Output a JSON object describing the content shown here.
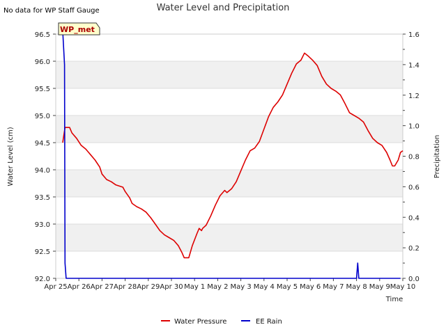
{
  "note": "No data for WP Staff Gauge",
  "chart_data": {
    "type": "line",
    "title": "Water Level and Precipitation",
    "xlabel": "Time",
    "ylabel_left": "Water Level (cm)",
    "ylabel_right": "Precipitation",
    "badge": "WP_met",
    "x_ticks": [
      "Apr 25",
      "Apr 26",
      "Apr 27",
      "Apr 28",
      "Apr 29",
      "Apr 30",
      "May 1",
      "May 2",
      "May 3",
      "May 4",
      "May 5",
      "May 6",
      "May 7",
      "May 8",
      "May 9",
      "May 10"
    ],
    "x_range_days": [
      0,
      15
    ],
    "y_left": {
      "ylim": [
        92.0,
        96.5
      ],
      "ticks": [
        "92.0",
        "92.5",
        "93.0",
        "93.5",
        "94.0",
        "94.5",
        "95.0",
        "95.5",
        "96.0",
        "96.5"
      ]
    },
    "y_right": {
      "ylim": [
        0.0,
        1.6
      ],
      "ticks": [
        "0.0",
        "0.2",
        "0.4",
        "0.6",
        "0.8",
        "1.0",
        "1.2",
        "1.4",
        "1.6"
      ]
    },
    "grid": "horizontal bands",
    "legend_position": "bottom-center",
    "series": [
      {
        "name": "Water Pressure",
        "axis": "left",
        "color": "#dd0000",
        "points": [
          [
            0.3,
            94.5
          ],
          [
            0.4,
            94.78
          ],
          [
            0.6,
            94.78
          ],
          [
            0.7,
            94.68
          ],
          [
            0.9,
            94.58
          ],
          [
            1.1,
            94.45
          ],
          [
            1.3,
            94.38
          ],
          [
            1.5,
            94.28
          ],
          [
            1.7,
            94.18
          ],
          [
            1.9,
            94.05
          ],
          [
            2.0,
            93.92
          ],
          [
            2.2,
            93.82
          ],
          [
            2.4,
            93.78
          ],
          [
            2.6,
            93.72
          ],
          [
            2.9,
            93.68
          ],
          [
            3.0,
            93.6
          ],
          [
            3.2,
            93.48
          ],
          [
            3.3,
            93.38
          ],
          [
            3.5,
            93.32
          ],
          [
            3.7,
            93.28
          ],
          [
            3.9,
            93.22
          ],
          [
            4.1,
            93.12
          ],
          [
            4.3,
            93.0
          ],
          [
            4.5,
            92.88
          ],
          [
            4.7,
            92.8
          ],
          [
            4.9,
            92.75
          ],
          [
            5.1,
            92.7
          ],
          [
            5.3,
            92.6
          ],
          [
            5.45,
            92.48
          ],
          [
            5.55,
            92.38
          ],
          [
            5.75,
            92.38
          ],
          [
            5.9,
            92.6
          ],
          [
            6.1,
            92.82
          ],
          [
            6.2,
            92.92
          ],
          [
            6.3,
            92.88
          ],
          [
            6.35,
            92.92
          ],
          [
            6.5,
            92.98
          ],
          [
            6.7,
            93.15
          ],
          [
            6.9,
            93.35
          ],
          [
            7.1,
            93.52
          ],
          [
            7.3,
            93.62
          ],
          [
            7.4,
            93.58
          ],
          [
            7.6,
            93.65
          ],
          [
            7.8,
            93.78
          ],
          [
            8.0,
            93.98
          ],
          [
            8.2,
            94.18
          ],
          [
            8.4,
            94.35
          ],
          [
            8.6,
            94.4
          ],
          [
            8.8,
            94.52
          ],
          [
            9.0,
            94.75
          ],
          [
            9.2,
            94.98
          ],
          [
            9.4,
            95.15
          ],
          [
            9.6,
            95.25
          ],
          [
            9.8,
            95.38
          ],
          [
            10.0,
            95.58
          ],
          [
            10.2,
            95.78
          ],
          [
            10.4,
            95.95
          ],
          [
            10.6,
            96.02
          ],
          [
            10.75,
            96.15
          ],
          [
            10.9,
            96.1
          ],
          [
            11.1,
            96.02
          ],
          [
            11.3,
            95.92
          ],
          [
            11.5,
            95.72
          ],
          [
            11.7,
            95.58
          ],
          [
            11.9,
            95.5
          ],
          [
            12.1,
            95.45
          ],
          [
            12.3,
            95.38
          ],
          [
            12.5,
            95.22
          ],
          [
            12.7,
            95.05
          ],
          [
            12.9,
            95.0
          ],
          [
            13.1,
            94.95
          ],
          [
            13.3,
            94.88
          ],
          [
            13.5,
            94.72
          ],
          [
            13.7,
            94.58
          ],
          [
            13.9,
            94.5
          ],
          [
            14.1,
            94.45
          ],
          [
            14.3,
            94.32
          ],
          [
            14.45,
            94.18
          ],
          [
            14.55,
            94.07
          ],
          [
            14.65,
            94.07
          ],
          [
            14.8,
            94.18
          ],
          [
            14.9,
            94.32
          ],
          [
            15.0,
            94.35
          ]
        ]
      },
      {
        "name": "EE Rain",
        "axis": "right",
        "color": "#0000cc",
        "points": [
          [
            0.3,
            1.62
          ],
          [
            0.38,
            1.4
          ],
          [
            0.4,
            0.1
          ],
          [
            0.45,
            0.0
          ],
          [
            13.0,
            0.0
          ],
          [
            13.05,
            0.1
          ],
          [
            13.1,
            0.0
          ],
          [
            14.9,
            0.0
          ]
        ]
      }
    ]
  }
}
